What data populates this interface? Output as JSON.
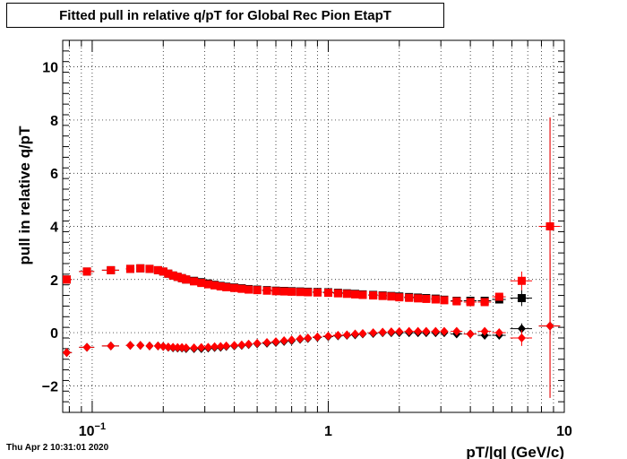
{
  "header": {
    "title": "Fitted pull in relative q/pT for Global Rec Pion EtapT",
    "timestamp": "Thu Apr  2 10:31:01 2020"
  },
  "chart_data": {
    "type": "scatter",
    "title": "Fitted pull in relative q/pT for Global Rec Pion EtapT",
    "xlabel": "pT/|q| (GeV/c)",
    "ylabel": "pull in relative q/pT",
    "x_scale": "log",
    "xlim": [
      0.075,
      10
    ],
    "ylim": [
      -3,
      11
    ],
    "x_tick_labels": [
      {
        "value": 0.1,
        "label": "10",
        "sup": "−1"
      },
      {
        "value": 1,
        "label": "1",
        "sup": ""
      },
      {
        "value": 10,
        "label": "10",
        "sup": ""
      }
    ],
    "y_tick_labels": [
      "−2",
      "0",
      "2",
      "4",
      "6",
      "8",
      "10"
    ],
    "y_tick_values": [
      -2,
      0,
      2,
      4,
      6,
      8,
      10
    ],
    "grid": true,
    "colors": {
      "black": "#000000",
      "red": "#ff0000"
    },
    "series": [
      {
        "color": "#000000",
        "marker": "square",
        "x": [
          0.078,
          0.095,
          0.12,
          0.145,
          0.16,
          0.175,
          0.19,
          0.2,
          0.21,
          0.22,
          0.23,
          0.24,
          0.25,
          0.27,
          0.29,
          0.31,
          0.33,
          0.35,
          0.37,
          0.4,
          0.43,
          0.46,
          0.5,
          0.55,
          0.6,
          0.65,
          0.7,
          0.76,
          0.82,
          0.9,
          1.0,
          1.1,
          1.2,
          1.3,
          1.4,
          1.55,
          1.7,
          1.85,
          2.0,
          2.2,
          2.4,
          2.6,
          2.85,
          3.1,
          3.5,
          4.0,
          4.6,
          5.3,
          6.6,
          8.7
        ],
        "y": [
          2.0,
          2.3,
          2.35,
          2.4,
          2.42,
          2.4,
          2.35,
          2.3,
          2.22,
          2.15,
          2.1,
          2.05,
          2.0,
          1.95,
          1.9,
          1.85,
          1.8,
          1.76,
          1.73,
          1.7,
          1.67,
          1.64,
          1.62,
          1.6,
          1.58,
          1.57,
          1.56,
          1.55,
          1.54,
          1.53,
          1.52,
          1.5,
          1.48,
          1.46,
          1.44,
          1.42,
          1.4,
          1.38,
          1.36,
          1.34,
          1.32,
          1.3,
          1.28,
          1.24,
          1.2,
          1.2,
          1.2,
          1.25,
          1.3,
          4.0
        ],
        "xerr": [
          0.004,
          0.007,
          0.01,
          0.006,
          0.005,
          0.005,
          0.005,
          0.005,
          0.005,
          0.005,
          0.005,
          0.005,
          0.006,
          0.01,
          0.01,
          0.01,
          0.01,
          0.01,
          0.01,
          0.015,
          0.015,
          0.015,
          0.02,
          0.025,
          0.025,
          0.025,
          0.025,
          0.03,
          0.03,
          0.04,
          0.05,
          0.05,
          0.05,
          0.05,
          0.05,
          0.07,
          0.07,
          0.07,
          0.08,
          0.1,
          0.1,
          0.1,
          0.12,
          0.12,
          0.2,
          0.25,
          0.3,
          0.35,
          0.7,
          0.9
        ],
        "yerr": [
          0.02,
          0.02,
          0.02,
          0.02,
          0.02,
          0.02,
          0.02,
          0.02,
          0.02,
          0.02,
          0.02,
          0.02,
          0.02,
          0.02,
          0.02,
          0.02,
          0.02,
          0.02,
          0.02,
          0.02,
          0.02,
          0.02,
          0.02,
          0.02,
          0.02,
          0.02,
          0.02,
          0.02,
          0.02,
          0.02,
          0.02,
          0.02,
          0.02,
          0.02,
          0.02,
          0.02,
          0.02,
          0.02,
          0.02,
          0.02,
          0.02,
          0.03,
          0.03,
          0.05,
          0.06,
          0.08,
          0.1,
          0.15,
          0.3,
          4.1
        ]
      },
      {
        "color": "#000000",
        "marker": "diamond",
        "x": [
          0.078,
          0.095,
          0.12,
          0.145,
          0.16,
          0.175,
          0.19,
          0.2,
          0.21,
          0.22,
          0.23,
          0.24,
          0.25,
          0.27,
          0.29,
          0.31,
          0.33,
          0.35,
          0.37,
          0.4,
          0.43,
          0.46,
          0.5,
          0.55,
          0.6,
          0.65,
          0.7,
          0.76,
          0.82,
          0.9,
          1.0,
          1.1,
          1.2,
          1.3,
          1.4,
          1.55,
          1.7,
          1.85,
          2.0,
          2.2,
          2.4,
          2.6,
          2.85,
          3.1,
          3.5,
          4.0,
          4.6,
          5.3,
          6.6,
          8.7
        ],
        "y": [
          -0.75,
          -0.55,
          -0.5,
          -0.48,
          -0.48,
          -0.5,
          -0.5,
          -0.52,
          -0.55,
          -0.57,
          -0.58,
          -0.58,
          -0.6,
          -0.6,
          -0.6,
          -0.58,
          -0.56,
          -0.55,
          -0.52,
          -0.5,
          -0.48,
          -0.45,
          -0.42,
          -0.4,
          -0.37,
          -0.33,
          -0.3,
          -0.25,
          -0.22,
          -0.18,
          -0.15,
          -0.12,
          -0.1,
          -0.08,
          -0.05,
          -0.03,
          0.0,
          0.0,
          0.0,
          0.0,
          0.0,
          0.0,
          0.0,
          0.0,
          -0.05,
          -0.05,
          -0.1,
          -0.1,
          0.15,
          0.25
        ],
        "xerr": [
          0.004,
          0.007,
          0.01,
          0.006,
          0.005,
          0.005,
          0.005,
          0.005,
          0.005,
          0.005,
          0.005,
          0.005,
          0.006,
          0.01,
          0.01,
          0.01,
          0.01,
          0.01,
          0.01,
          0.015,
          0.015,
          0.015,
          0.02,
          0.025,
          0.025,
          0.025,
          0.025,
          0.03,
          0.03,
          0.04,
          0.05,
          0.05,
          0.05,
          0.05,
          0.05,
          0.07,
          0.07,
          0.07,
          0.08,
          0.1,
          0.1,
          0.1,
          0.12,
          0.12,
          0.2,
          0.25,
          0.3,
          0.35,
          0.7,
          0.9
        ],
        "yerr": [
          0.02,
          0.02,
          0.02,
          0.02,
          0.02,
          0.02,
          0.02,
          0.02,
          0.02,
          0.02,
          0.02,
          0.02,
          0.02,
          0.02,
          0.02,
          0.02,
          0.02,
          0.02,
          0.02,
          0.02,
          0.02,
          0.02,
          0.02,
          0.02,
          0.02,
          0.02,
          0.02,
          0.02,
          0.02,
          0.02,
          0.02,
          0.02,
          0.02,
          0.02,
          0.02,
          0.02,
          0.02,
          0.02,
          0.02,
          0.02,
          0.02,
          0.03,
          0.03,
          0.05,
          0.06,
          0.08,
          0.1,
          0.15,
          0.2,
          2.7
        ]
      },
      {
        "color": "#ff0000",
        "marker": "square",
        "x": [
          0.078,
          0.095,
          0.12,
          0.145,
          0.16,
          0.175,
          0.19,
          0.2,
          0.21,
          0.22,
          0.23,
          0.24,
          0.25,
          0.27,
          0.29,
          0.31,
          0.33,
          0.35,
          0.37,
          0.4,
          0.43,
          0.46,
          0.5,
          0.55,
          0.6,
          0.65,
          0.7,
          0.76,
          0.82,
          0.9,
          1.0,
          1.1,
          1.2,
          1.3,
          1.4,
          1.55,
          1.7,
          1.85,
          2.0,
          2.2,
          2.4,
          2.6,
          2.85,
          3.1,
          3.5,
          4.0,
          4.6,
          5.3,
          6.6,
          8.7
        ],
        "y": [
          2.0,
          2.3,
          2.35,
          2.4,
          2.42,
          2.4,
          2.35,
          2.3,
          2.22,
          2.15,
          2.1,
          2.05,
          2.0,
          1.93,
          1.87,
          1.82,
          1.78,
          1.74,
          1.71,
          1.68,
          1.65,
          1.62,
          1.6,
          1.58,
          1.56,
          1.55,
          1.54,
          1.53,
          1.52,
          1.51,
          1.5,
          1.48,
          1.46,
          1.44,
          1.42,
          1.4,
          1.38,
          1.36,
          1.33,
          1.31,
          1.29,
          1.27,
          1.25,
          1.22,
          1.18,
          1.15,
          1.15,
          1.35,
          1.95,
          4.0
        ],
        "xerr": [
          0.004,
          0.007,
          0.01,
          0.006,
          0.005,
          0.005,
          0.005,
          0.005,
          0.005,
          0.005,
          0.005,
          0.005,
          0.006,
          0.01,
          0.01,
          0.01,
          0.01,
          0.01,
          0.01,
          0.015,
          0.015,
          0.015,
          0.02,
          0.025,
          0.025,
          0.025,
          0.025,
          0.03,
          0.03,
          0.04,
          0.05,
          0.05,
          0.05,
          0.05,
          0.05,
          0.07,
          0.07,
          0.07,
          0.08,
          0.1,
          0.1,
          0.1,
          0.12,
          0.12,
          0.2,
          0.25,
          0.3,
          0.35,
          0.7,
          0.9
        ],
        "yerr": [
          0.02,
          0.02,
          0.02,
          0.02,
          0.02,
          0.02,
          0.02,
          0.02,
          0.02,
          0.02,
          0.02,
          0.02,
          0.02,
          0.02,
          0.02,
          0.02,
          0.02,
          0.02,
          0.02,
          0.02,
          0.02,
          0.02,
          0.02,
          0.02,
          0.02,
          0.02,
          0.02,
          0.02,
          0.02,
          0.02,
          0.02,
          0.02,
          0.02,
          0.02,
          0.02,
          0.02,
          0.02,
          0.02,
          0.02,
          0.02,
          0.02,
          0.03,
          0.03,
          0.05,
          0.06,
          0.08,
          0.1,
          0.15,
          0.35,
          4.1
        ]
      },
      {
        "color": "#ff0000",
        "marker": "diamond",
        "x": [
          0.078,
          0.095,
          0.12,
          0.145,
          0.16,
          0.175,
          0.19,
          0.2,
          0.21,
          0.22,
          0.23,
          0.24,
          0.25,
          0.27,
          0.29,
          0.31,
          0.33,
          0.35,
          0.37,
          0.4,
          0.43,
          0.46,
          0.5,
          0.55,
          0.6,
          0.65,
          0.7,
          0.76,
          0.82,
          0.9,
          1.0,
          1.1,
          1.2,
          1.3,
          1.4,
          1.55,
          1.7,
          1.85,
          2.0,
          2.2,
          2.4,
          2.6,
          2.85,
          3.1,
          3.5,
          4.0,
          4.6,
          5.3,
          6.6,
          8.7
        ],
        "y": [
          -0.75,
          -0.55,
          -0.5,
          -0.48,
          -0.48,
          -0.5,
          -0.5,
          -0.52,
          -0.54,
          -0.55,
          -0.56,
          -0.56,
          -0.57,
          -0.57,
          -0.56,
          -0.55,
          -0.53,
          -0.52,
          -0.5,
          -0.48,
          -0.46,
          -0.43,
          -0.4,
          -0.37,
          -0.34,
          -0.3,
          -0.27,
          -0.23,
          -0.2,
          -0.16,
          -0.13,
          -0.1,
          -0.08,
          -0.05,
          -0.03,
          0.0,
          0.02,
          0.03,
          0.04,
          0.05,
          0.05,
          0.05,
          0.05,
          0.05,
          0.05,
          -0.05,
          0.05,
          0.0,
          -0.2,
          0.25
        ],
        "xerr": [
          0.004,
          0.007,
          0.01,
          0.006,
          0.005,
          0.005,
          0.005,
          0.005,
          0.005,
          0.005,
          0.005,
          0.005,
          0.006,
          0.01,
          0.01,
          0.01,
          0.01,
          0.01,
          0.01,
          0.015,
          0.015,
          0.015,
          0.02,
          0.025,
          0.025,
          0.025,
          0.025,
          0.03,
          0.03,
          0.04,
          0.05,
          0.05,
          0.05,
          0.05,
          0.05,
          0.07,
          0.07,
          0.07,
          0.08,
          0.1,
          0.1,
          0.1,
          0.12,
          0.12,
          0.2,
          0.25,
          0.3,
          0.35,
          0.7,
          0.9
        ],
        "yerr": [
          0.02,
          0.02,
          0.02,
          0.02,
          0.02,
          0.02,
          0.02,
          0.02,
          0.02,
          0.02,
          0.02,
          0.02,
          0.02,
          0.02,
          0.02,
          0.02,
          0.02,
          0.02,
          0.02,
          0.02,
          0.02,
          0.02,
          0.02,
          0.02,
          0.02,
          0.02,
          0.02,
          0.02,
          0.02,
          0.02,
          0.02,
          0.02,
          0.02,
          0.02,
          0.02,
          0.02,
          0.02,
          0.02,
          0.02,
          0.02,
          0.02,
          0.03,
          0.03,
          0.05,
          0.06,
          0.08,
          0.1,
          0.15,
          0.3,
          2.7
        ]
      }
    ]
  }
}
